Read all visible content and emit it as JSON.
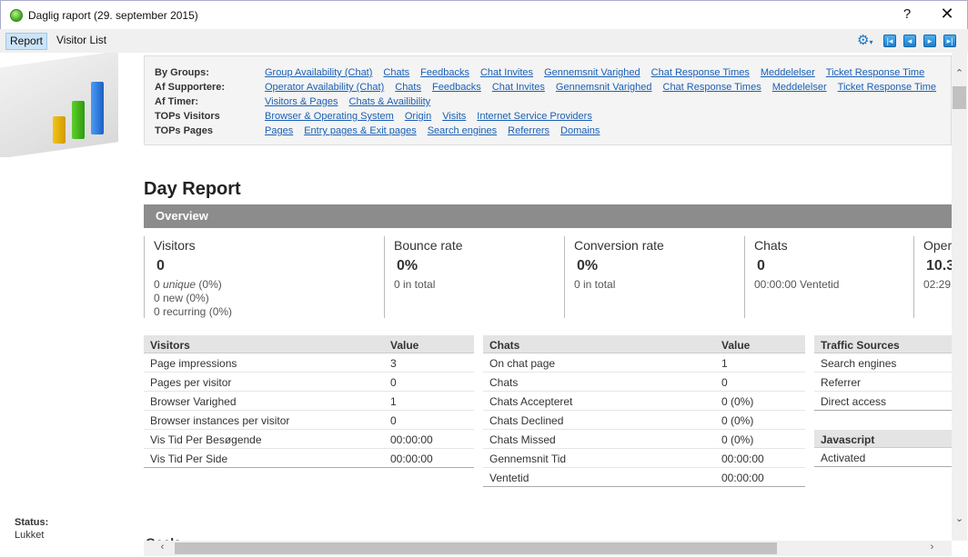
{
  "window": {
    "title": "Daglig raport (29. september 2015)",
    "help_label": "?",
    "close_label": "✕"
  },
  "menu": {
    "tabs": [
      {
        "label": "Report",
        "active": true
      },
      {
        "label": "Visitor List",
        "active": false
      }
    ],
    "toolbar_icons": [
      "gear-icon",
      "first-icon",
      "prev-icon",
      "next-icon",
      "last-icon"
    ]
  },
  "nav": {
    "rows": [
      {
        "label": "By Groups:",
        "links": [
          "Group Availability (Chat)",
          "Chats",
          "Feedbacks",
          "Chat Invites",
          "Gennemsnit Varighed",
          "Chat Response Times",
          "Meddelelser",
          "Ticket Response Time"
        ]
      },
      {
        "label": "Af Supportere:",
        "links": [
          "Operator Availability (Chat)",
          "Chats",
          "Feedbacks",
          "Chat Invites",
          "Gennemsnit Varighed",
          "Chat Response Times",
          "Meddelelser",
          "Ticket Response Time"
        ]
      },
      {
        "label": "Af Timer:",
        "links": [
          "Visitors & Pages",
          "Chats & Availibility"
        ]
      },
      {
        "label": "TOPs Visitors",
        "links": [
          "Browser & Operating System",
          "Origin",
          "Visits",
          "Internet Service Providers"
        ]
      },
      {
        "label": "TOPs Pages",
        "links": [
          "Pages",
          "Entry pages & Exit pages",
          "Search engines",
          "Referrers",
          "Domains"
        ]
      }
    ]
  },
  "report": {
    "title": "Day Report",
    "overview_label": "Overview",
    "overview": {
      "visitors": {
        "title": "Visitors",
        "value": "0",
        "unique_count": "0",
        "unique_word": "unique",
        "unique_pct": "(0%)",
        "new": "0 new (0%)",
        "recurring": "0 recurring (0%)"
      },
      "bounce": {
        "title": "Bounce rate",
        "value": "0%",
        "sub": "0 in total"
      },
      "conversion": {
        "title": "Conversion rate",
        "value": "0%",
        "sub": "0 in total"
      },
      "chats": {
        "title": "Chats",
        "value": "0",
        "sub": "00:00:00 Ventetid"
      },
      "open": {
        "title": "Oper",
        "value": "10.3",
        "sub": "02:29"
      }
    },
    "visitors_table": {
      "headers": [
        "Visitors",
        "Value"
      ],
      "rows": [
        [
          "Page impressions",
          "3"
        ],
        [
          "Pages per visitor",
          "0"
        ],
        [
          "Browser Varighed",
          "1"
        ],
        [
          "Browser instances per visitor",
          "0"
        ],
        [
          "Vis Tid Per Besøgende",
          "00:00:00"
        ],
        [
          "Vis Tid Per Side",
          "00:00:00"
        ]
      ]
    },
    "chats_table": {
      "headers": [
        "Chats",
        "Value"
      ],
      "rows": [
        [
          "On chat page",
          "1"
        ],
        [
          "Chats",
          "0"
        ],
        [
          "Chats Accepteret",
          "0 (0%)"
        ],
        [
          "Chats Declined",
          "0 (0%)"
        ],
        [
          "Chats Missed",
          "0 (0%)"
        ],
        [
          "Gennemsnit Tid",
          "00:00:00"
        ],
        [
          "Ventetid",
          "00:00:00"
        ]
      ]
    },
    "traffic_table": {
      "headers": [
        "Traffic Sources"
      ],
      "rows": [
        [
          "Search engines"
        ],
        [
          "Referrer"
        ],
        [
          "Direct access"
        ]
      ]
    },
    "js_table": {
      "headers": [
        "Javascript"
      ],
      "rows": [
        [
          "Activated"
        ]
      ]
    },
    "goals_label": "Goals"
  },
  "status": {
    "label": "Status:",
    "value": "Lukket"
  },
  "colors": {
    "link": "#1a5fb4",
    "overview_bar": "#8c8c8c",
    "active_tab": "#cce4f7"
  }
}
